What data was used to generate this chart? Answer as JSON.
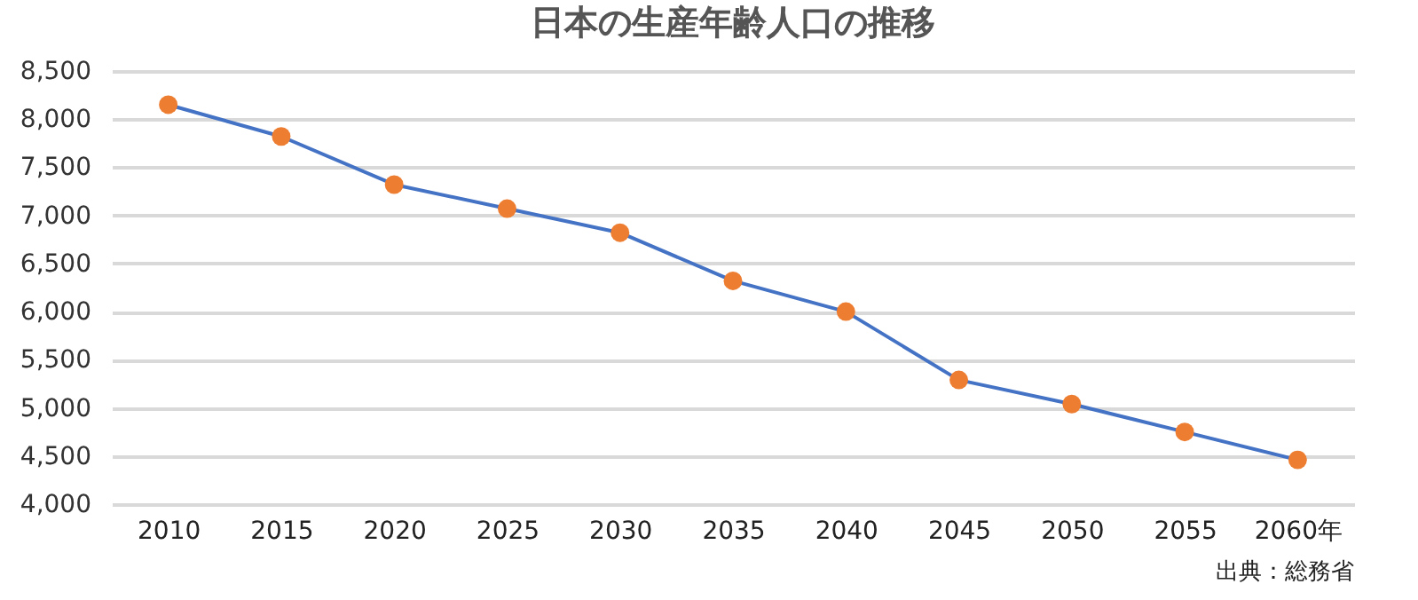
{
  "chart_data": {
    "type": "line",
    "title": "日本の生産年齢人口の推移",
    "categories": [
      "2010",
      "2015",
      "2020",
      "2025",
      "2030",
      "2035",
      "2040",
      "2045",
      "2050",
      "2055",
      "2060年"
    ],
    "series": [
      {
        "color": "#4472c4",
        "colors": [
          "#ed7d31",
          "#ed7d31",
          "#ed7d31",
          "#ed7d31",
          "#ed7d31",
          "#ed7d31",
          "#ed7d31",
          "#ed7d31",
          "#ed7d31",
          "#ed7d31",
          "#ed7d31"
        ],
        "values": [
          8150,
          7820,
          7320,
          7070,
          6820,
          6320,
          6000,
          5290,
          5040,
          4750,
          4460
        ]
      }
    ],
    "ylim": [
      4000,
      8500
    ],
    "yticks": [
      {
        "value": 4000,
        "label": "4,000"
      },
      {
        "value": 4500,
        "label": "4,500"
      },
      {
        "value": 5000,
        "label": "5,000"
      },
      {
        "value": 5500,
        "label": "5,500"
      },
      {
        "value": 6000,
        "label": "6,000"
      },
      {
        "value": 6500,
        "label": "6,500"
      },
      {
        "value": 7000,
        "label": "7,000"
      },
      {
        "value": 7500,
        "label": "7,500"
      },
      {
        "value": 8000,
        "label": "8,000"
      },
      {
        "value": 8500,
        "label": "8,500"
      }
    ],
    "grid": "y",
    "marker": "circle",
    "legend": false,
    "annotations": [
      "出典：総務省"
    ]
  }
}
